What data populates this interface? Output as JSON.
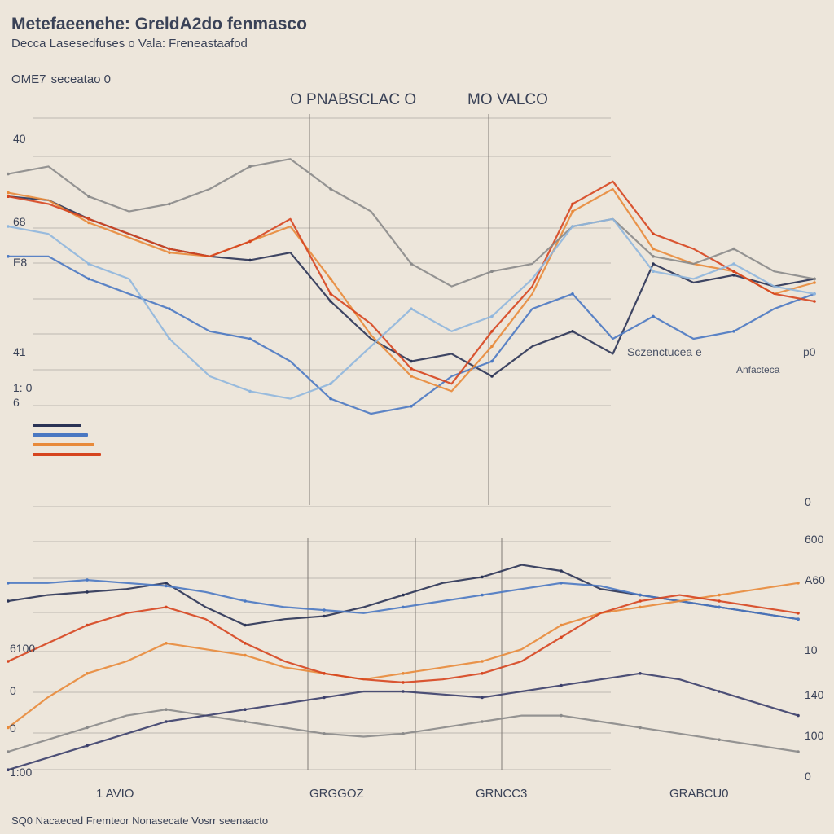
{
  "header": {
    "title": "Metefaeenehe: GreldA2do fenmasco",
    "subtitle": "Decca Lasesedfuses o Vala: Freneastaafod",
    "omet_label": "OME7",
    "omet_sub": "seceatao 0",
    "mid_label": "O PNABSCLAC O",
    "right_label": "MO VALCO",
    "annotation": "Sczenctucea e",
    "annotation_sub": "Anfacteca",
    "annotation_corner": "p0",
    "footer": "SQ0 Nacaeced Fremteor Nonasecate Vosrr seenaacto"
  },
  "colors": {
    "background": "#ede6db",
    "navy": "#2a3355",
    "blue": "#4a78c2",
    "orange": "#e88a3a",
    "red": "#d6451f",
    "gray": "#8a8a8a",
    "light_blue": "#8fb6dd",
    "gold": "#e0b23a",
    "grid": "#bdb8b0"
  },
  "chart_data": [
    {
      "type": "line",
      "title": "",
      "y_ticks_left": [
        "40",
        "68",
        "E8",
        "41",
        "1: 0",
        "6"
      ],
      "x": [
        0,
        1,
        2,
        3,
        4,
        5,
        6,
        7,
        8,
        9,
        10,
        11,
        12,
        13,
        14,
        15,
        16,
        17,
        18,
        19,
        20
      ],
      "series": [
        {
          "color": "navy",
          "values": [
            78,
            77,
            72,
            68,
            64,
            62,
            61,
            63,
            50,
            40,
            34,
            36,
            30,
            38,
            42,
            36,
            60,
            55,
            57,
            54,
            56
          ]
        },
        {
          "color": "blue",
          "values": [
            62,
            62,
            56,
            52,
            48,
            42,
            40,
            34,
            24,
            20,
            22,
            30,
            34,
            48,
            52,
            40,
            46,
            40,
            42,
            48,
            52
          ]
        },
        {
          "color": "orange",
          "values": [
            79,
            77,
            71,
            67,
            63,
            62,
            66,
            70,
            56,
            41,
            30,
            26,
            38,
            52,
            74,
            80,
            64,
            60,
            58,
            52,
            55
          ]
        },
        {
          "color": "red",
          "values": [
            78,
            76,
            72,
            68,
            64,
            62,
            66,
            72,
            52,
            44,
            32,
            28,
            42,
            54,
            76,
            82,
            68,
            64,
            58,
            52,
            50
          ]
        },
        {
          "color": "gray",
          "values": [
            84,
            86,
            78,
            74,
            76,
            80,
            86,
            88,
            80,
            74,
            60,
            54,
            58,
            60,
            70,
            72,
            62,
            60,
            64,
            58,
            56
          ]
        },
        {
          "color": "light_blue",
          "values": [
            70,
            68,
            60,
            56,
            40,
            30,
            26,
            24,
            28,
            38,
            48,
            42,
            46,
            56,
            70,
            72,
            58,
            56,
            60,
            54,
            52
          ]
        }
      ]
    },
    {
      "type": "line",
      "title": "",
      "y_ticks_left": [
        "6100",
        "0",
        "0",
        "1:00"
      ],
      "y_ticks_right": [
        "0",
        "600",
        "A60",
        "10",
        "140",
        "100",
        "0"
      ],
      "categories": [
        "1 AVIO",
        "GRGGOZ",
        "GRNCC3",
        "GRABCU0"
      ],
      "x": [
        0,
        1,
        2,
        3,
        4,
        5,
        6,
        7,
        8,
        9,
        10,
        11,
        12,
        13,
        14,
        15,
        16,
        17,
        18,
        19,
        20
      ],
      "series": [
        {
          "color": "navy",
          "values": [
            60,
            62,
            63,
            64,
            66,
            58,
            52,
            54,
            55,
            58,
            62,
            66,
            68,
            72,
            70,
            64,
            62,
            60,
            58,
            56,
            54
          ]
        },
        {
          "color": "blue",
          "values": [
            66,
            66,
            67,
            66,
            65,
            63,
            60,
            58,
            57,
            56,
            58,
            60,
            62,
            64,
            66,
            65,
            62,
            60,
            58,
            56,
            54
          ]
        },
        {
          "color": "orange",
          "values": [
            18,
            28,
            36,
            40,
            46,
            44,
            42,
            38,
            36,
            34,
            36,
            38,
            40,
            44,
            52,
            56,
            58,
            60,
            62,
            64,
            66
          ]
        },
        {
          "color": "red",
          "values": [
            40,
            46,
            52,
            56,
            58,
            54,
            46,
            40,
            36,
            34,
            33,
            34,
            36,
            40,
            48,
            56,
            60,
            62,
            60,
            58,
            56
          ]
        },
        {
          "color": "gray",
          "values": [
            10,
            14,
            18,
            22,
            24,
            22,
            20,
            18,
            16,
            15,
            16,
            18,
            20,
            22,
            22,
            20,
            18,
            16,
            14,
            12,
            10
          ]
        },
        {
          "color": "navy2",
          "values": [
            4,
            8,
            12,
            16,
            20,
            22,
            24,
            26,
            28,
            30,
            30,
            29,
            28,
            30,
            32,
            34,
            36,
            34,
            30,
            26,
            22
          ]
        }
      ]
    }
  ]
}
